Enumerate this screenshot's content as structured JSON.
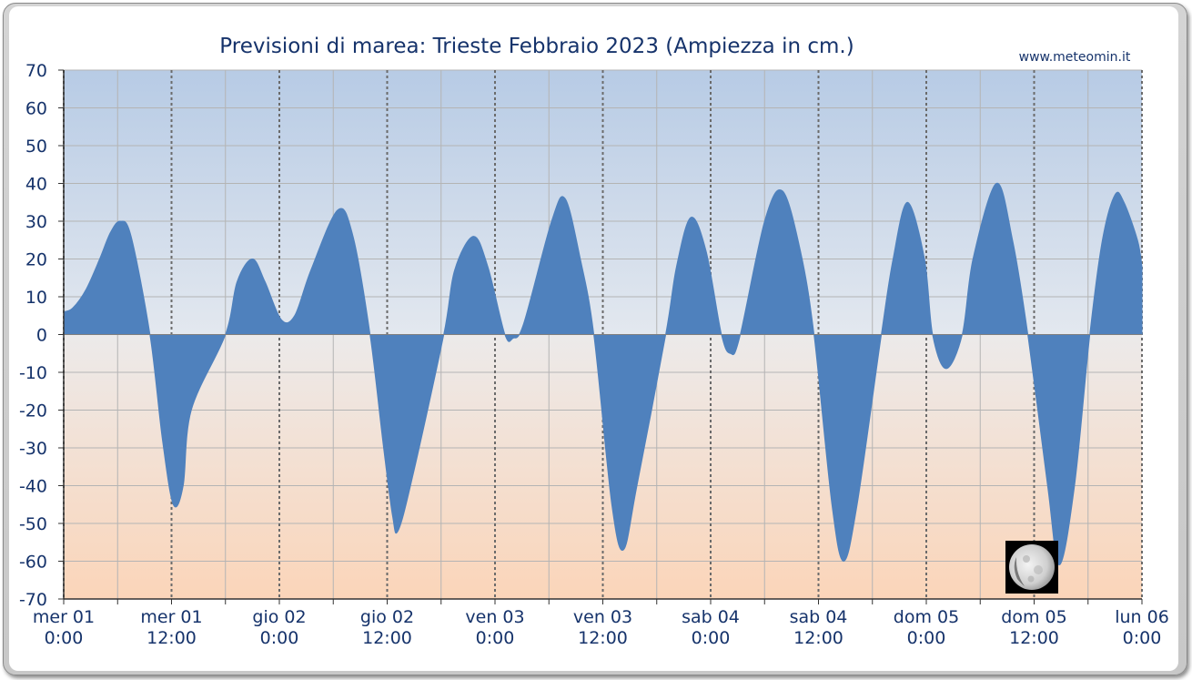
{
  "chart_data": {
    "type": "area",
    "title": "Previsioni di marea: Trieste Febbraio 2023 (Ampiezza in cm.)",
    "source_label": "www.meteomin.it",
    "xlabel": "",
    "ylabel": "",
    "ylim": [
      -70,
      70
    ],
    "xlim_hours": [
      0,
      120
    ],
    "y_ticks": [
      70,
      60,
      50,
      40,
      30,
      20,
      10,
      0,
      -10,
      -20,
      -30,
      -40,
      -50,
      -60,
      -70
    ],
    "x_ticks": [
      {
        "line1": "mer   01",
        "line2": "0:00"
      },
      {
        "line1": "mer   01",
        "line2": "12:00"
      },
      {
        "line1": "gio   02",
        "line2": "0:00"
      },
      {
        "line1": "gio   02",
        "line2": "12:00"
      },
      {
        "line1": "ven   03",
        "line2": "0:00"
      },
      {
        "line1": "ven   03",
        "line2": "12:00"
      },
      {
        "line1": "sab   04",
        "line2": "0:00"
      },
      {
        "line1": "sab   04",
        "line2": "12:00"
      },
      {
        "line1": "dom   05",
        "line2": "0:00"
      },
      {
        "line1": "dom   05",
        "line2": "12:00"
      },
      {
        "line1": "lun   06",
        "line2": "0:00"
      }
    ],
    "series": [
      {
        "fill_color": "#4f81bd",
        "points": [
          {
            "x": 0.0,
            "y": 6
          },
          {
            "x": 1.0,
            "y": 7
          },
          {
            "x": 2.5,
            "y": 12
          },
          {
            "x": 4.0,
            "y": 20
          },
          {
            "x": 5.2,
            "y": 27
          },
          {
            "x": 6.3,
            "y": 30
          },
          {
            "x": 7.5,
            "y": 26
          },
          {
            "x": 9.6,
            "y": 0
          },
          {
            "x": 11.0,
            "y": -28
          },
          {
            "x": 12.2,
            "y": -45
          },
          {
            "x": 13.3,
            "y": -40
          },
          {
            "x": 14.2,
            "y": -20
          },
          {
            "x": 18.0,
            "y": 0
          },
          {
            "x": 19.3,
            "y": 14
          },
          {
            "x": 21.0,
            "y": 20
          },
          {
            "x": 22.4,
            "y": 14
          },
          {
            "x": 24.2,
            "y": 4
          },
          {
            "x": 25.7,
            "y": 5
          },
          {
            "x": 27.5,
            "y": 17
          },
          {
            "x": 30.5,
            "y": 33
          },
          {
            "x": 32.2,
            "y": 26
          },
          {
            "x": 34.1,
            "y": 0
          },
          {
            "x": 35.6,
            "y": -30
          },
          {
            "x": 36.6,
            "y": -48
          },
          {
            "x": 37.2,
            "y": -52
          },
          {
            "x": 38.8,
            "y": -38
          },
          {
            "x": 42.3,
            "y": 0
          },
          {
            "x": 43.5,
            "y": 17
          },
          {
            "x": 45.6,
            "y": 26
          },
          {
            "x": 47.2,
            "y": 18
          },
          {
            "x": 49.1,
            "y": 0
          },
          {
            "x": 50.0,
            "y": -1
          },
          {
            "x": 51.2,
            "y": 3
          },
          {
            "x": 54.3,
            "y": 30
          },
          {
            "x": 55.8,
            "y": 36
          },
          {
            "x": 57.5,
            "y": 20
          },
          {
            "x": 59.0,
            "y": 0
          },
          {
            "x": 61.0,
            "y": -45
          },
          {
            "x": 62.3,
            "y": -57
          },
          {
            "x": 63.8,
            "y": -40
          },
          {
            "x": 67.0,
            "y": 0
          },
          {
            "x": 68.2,
            "y": 18
          },
          {
            "x": 69.8,
            "y": 31
          },
          {
            "x": 71.5,
            "y": 22
          },
          {
            "x": 73.2,
            "y": 0
          },
          {
            "x": 74.2,
            "y": -5
          },
          {
            "x": 75.2,
            "y": -1
          },
          {
            "x": 78.0,
            "y": 30
          },
          {
            "x": 80.0,
            "y": 38
          },
          {
            "x": 82.0,
            "y": 22
          },
          {
            "x": 83.5,
            "y": 0
          },
          {
            "x": 85.5,
            "y": -45
          },
          {
            "x": 86.8,
            "y": -60
          },
          {
            "x": 88.3,
            "y": -45
          },
          {
            "x": 91.0,
            "y": 0
          },
          {
            "x": 92.3,
            "y": 20
          },
          {
            "x": 93.9,
            "y": 35
          },
          {
            "x": 95.8,
            "y": 20
          },
          {
            "x": 96.7,
            "y": 0
          },
          {
            "x": 98.2,
            "y": -9
          },
          {
            "x": 100.0,
            "y": 0
          },
          {
            "x": 101.2,
            "y": 20
          },
          {
            "x": 103.8,
            "y": 40
          },
          {
            "x": 105.6,
            "y": 25
          },
          {
            "x": 107.3,
            "y": 0
          },
          {
            "x": 109.5,
            "y": -40
          },
          {
            "x": 110.8,
            "y": -61
          },
          {
            "x": 112.5,
            "y": -40
          },
          {
            "x": 114.2,
            "y": 0
          },
          {
            "x": 115.6,
            "y": 25
          },
          {
            "x": 117.0,
            "y": 37
          },
          {
            "x": 118.0,
            "y": 35
          },
          {
            "x": 119.5,
            "y": 25
          },
          {
            "x": 120.0,
            "y": 18
          }
        ]
      }
    ],
    "grid": true,
    "background_above_zero": [
      "#b7cbe5",
      "#e3e8ef"
    ],
    "background_below_zero": [
      "#eceaea",
      "#fbd5b9"
    ],
    "moon_icon": "waxing-gibbous-moon-icon"
  }
}
